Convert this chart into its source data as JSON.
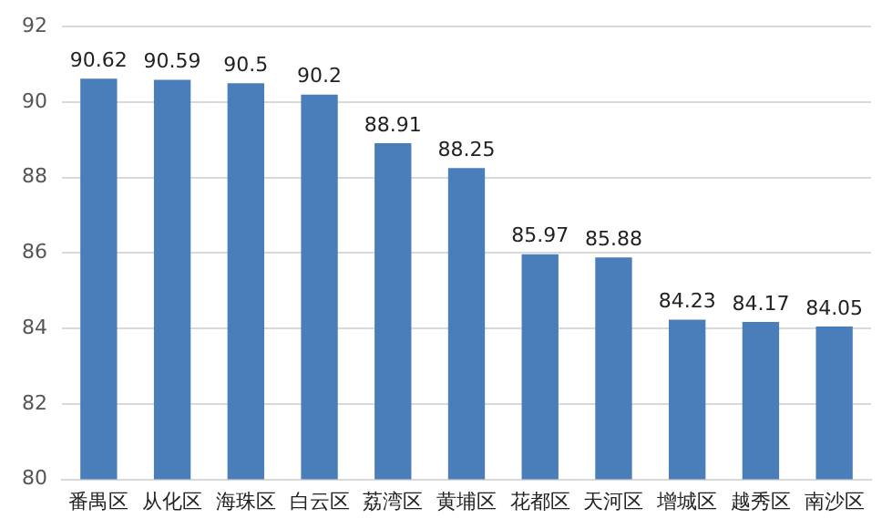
{
  "chart_data": {
    "type": "bar",
    "categories": [
      "番禺区",
      "从化区",
      "海珠区",
      "白云区",
      "荔湾区",
      "黄埔区",
      "花都区",
      "天河区",
      "增城区",
      "越秀区",
      "南沙区"
    ],
    "values": [
      90.62,
      90.59,
      90.5,
      90.2,
      88.91,
      88.25,
      85.97,
      85.88,
      84.23,
      84.17,
      84.05
    ],
    "color": "#4a7ebb",
    "ylim": [
      80,
      92
    ],
    "yticks": [
      80,
      82,
      84,
      86,
      88,
      90,
      92
    ],
    "grid": "y",
    "data_labels": true
  }
}
